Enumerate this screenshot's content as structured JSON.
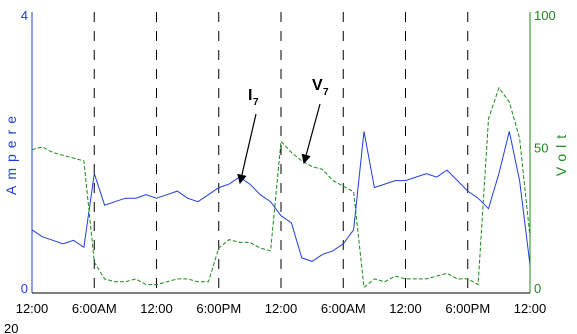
{
  "chart_data": {
    "type": "line",
    "x_tick_labels": [
      "12:00",
      "6:00AM",
      "12:00",
      "6:00PM",
      "12:00",
      "6:00AM",
      "12:00",
      "6:00PM",
      "12:00"
    ],
    "y_left": {
      "label": "Ampere",
      "ticks": [
        "0",
        "4"
      ],
      "ylim": [
        0,
        4
      ],
      "color": "#1f3fdc"
    },
    "y_right": {
      "label": "Volt",
      "ticks": [
        "0",
        "50",
        "100"
      ],
      "ylim": [
        0,
        100
      ],
      "color": "#1a8a1a"
    },
    "dashed_vertical_gridlines": true,
    "corner_label": "20",
    "annotations": [
      {
        "main": "I",
        "sub": "7",
        "series": "current"
      },
      {
        "main": "V",
        "sub": "7",
        "series": "voltage"
      }
    ],
    "x_hours": [
      0,
      1,
      2,
      3,
      4,
      5,
      6,
      7,
      8,
      9,
      10,
      11,
      12,
      13,
      14,
      15,
      16,
      17,
      18,
      19,
      20,
      21,
      22,
      23,
      24,
      25,
      26,
      27,
      28,
      29,
      30,
      31,
      32,
      33,
      34,
      35,
      36,
      37,
      38,
      39,
      40,
      41,
      42,
      43,
      44,
      45,
      46,
      47,
      48
    ],
    "series": [
      {
        "name": "I7",
        "axis": "left",
        "style": "solid",
        "color": "#1f3fdc",
        "values": [
          0.9,
          0.8,
          0.75,
          0.7,
          0.75,
          0.65,
          1.7,
          1.25,
          1.3,
          1.35,
          1.35,
          1.4,
          1.35,
          1.4,
          1.45,
          1.35,
          1.3,
          1.4,
          1.5,
          1.55,
          1.65,
          1.55,
          1.4,
          1.3,
          1.1,
          1.0,
          0.5,
          0.45,
          0.55,
          0.6,
          0.7,
          0.9,
          2.3,
          1.5,
          1.55,
          1.6,
          1.6,
          1.65,
          1.7,
          1.65,
          1.75,
          1.6,
          1.45,
          1.35,
          1.2,
          1.7,
          2.3,
          1.6,
          0.4
        ]
      },
      {
        "name": "V7",
        "axis": "right",
        "style": "dashed",
        "color": "#1a8a1a",
        "values": [
          51,
          52,
          50,
          49,
          48,
          47,
          11,
          5,
          4,
          4,
          5,
          3,
          3,
          4,
          5,
          5,
          4,
          4,
          16,
          19,
          18,
          18,
          16,
          15,
          54,
          50,
          47,
          45,
          44,
          40,
          38,
          36,
          2,
          5,
          4,
          6,
          5,
          5,
          5,
          6,
          7,
          5,
          5,
          3,
          62,
          73,
          68,
          55,
          20
        ]
      }
    ]
  }
}
